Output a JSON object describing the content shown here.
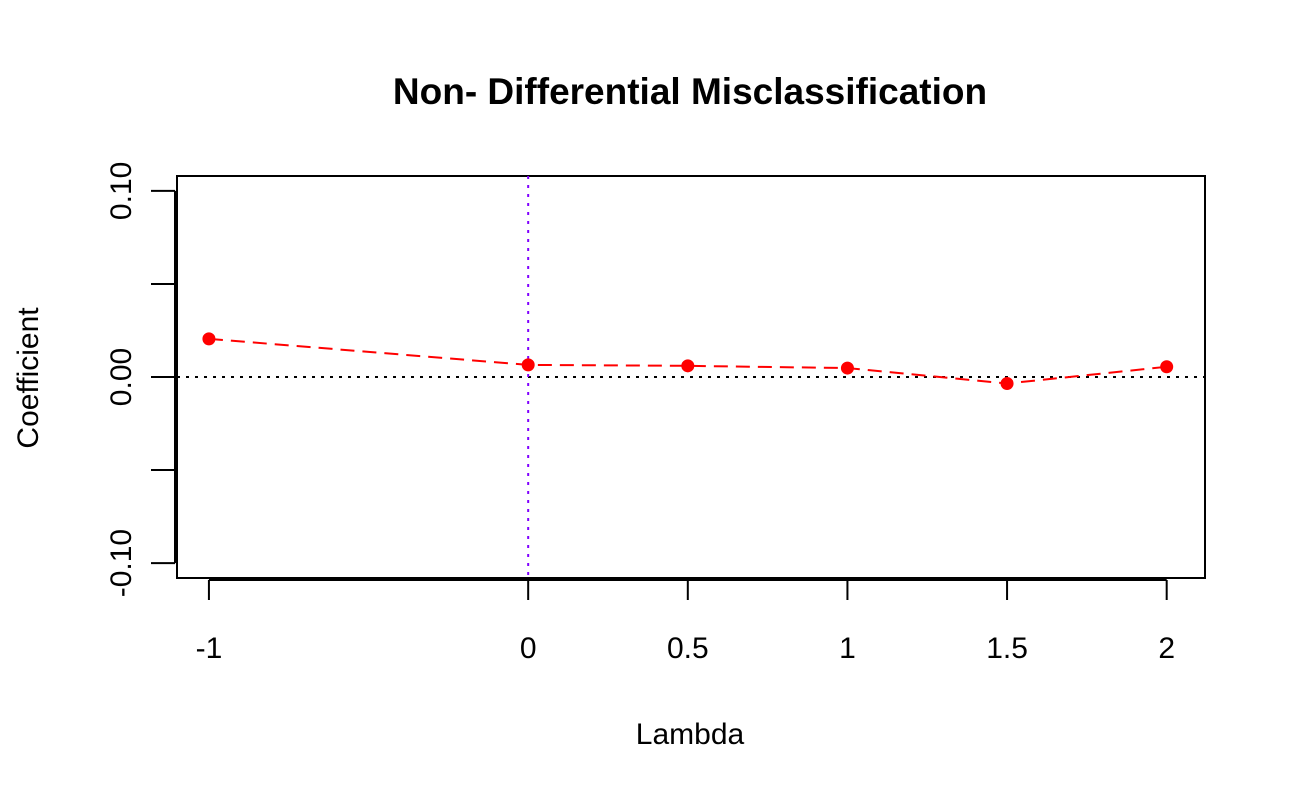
{
  "chart_data": {
    "type": "line",
    "title": "Non- Differential Misclassification",
    "xlabel": "Lambda",
    "ylabel": "Coefficient",
    "xlim": [
      -1.1,
      2.12
    ],
    "ylim": [
      -0.108,
      0.108
    ],
    "x_ticks": [
      -1,
      0,
      0.5,
      1,
      1.5,
      2
    ],
    "x_tick_labels": [
      "-1",
      "0",
      "0.5",
      "1",
      "1.5",
      "2"
    ],
    "y_ticks": [
      -0.1,
      -0.05,
      0,
      0.05,
      0.1
    ],
    "y_tick_labels": [
      "-0.10",
      "",
      "0.00",
      "",
      "0.10"
    ],
    "grid": false,
    "series": [
      {
        "x": [
          -1,
          0,
          0.5,
          1,
          1.5,
          2
        ],
        "y": [
          0.0205,
          0.0065,
          0.006,
          0.0048,
          -0.0035,
          0.0055
        ],
        "line_style": "dashed",
        "marker": "filled-circle",
        "color": "#ff0000"
      }
    ],
    "reference_lines": [
      {
        "orientation": "horizontal",
        "value": 0,
        "style": "dotted",
        "color": "#000000"
      },
      {
        "orientation": "vertical",
        "value": 0,
        "style": "dotted",
        "color": "#8000ff"
      }
    ]
  }
}
